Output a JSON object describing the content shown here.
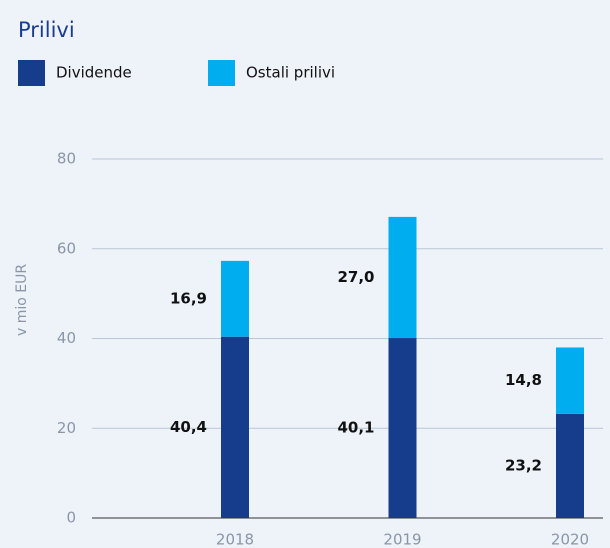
{
  "chart_data": {
    "type": "stacked_bar",
    "title": "Prilivi",
    "ylabel": "v mio EUR",
    "categories": [
      "2018",
      "2019",
      "2020"
    ],
    "series": [
      {
        "name": "Dividende",
        "color": "#163c8c",
        "values": [
          40.4,
          40.1,
          23.2
        ],
        "value_labels": [
          "40,4",
          "40,1",
          "23,2"
        ]
      },
      {
        "name": "Ostali prilivi",
        "color": "#00aeef",
        "values": [
          16.9,
          27.0,
          14.8
        ],
        "value_labels": [
          "16,9",
          "27,0",
          "14,8"
        ]
      }
    ],
    "ylim": [
      0,
      80
    ],
    "yticks": [
      0,
      20,
      40,
      60,
      80
    ],
    "grid": true,
    "legend": "top-left"
  }
}
